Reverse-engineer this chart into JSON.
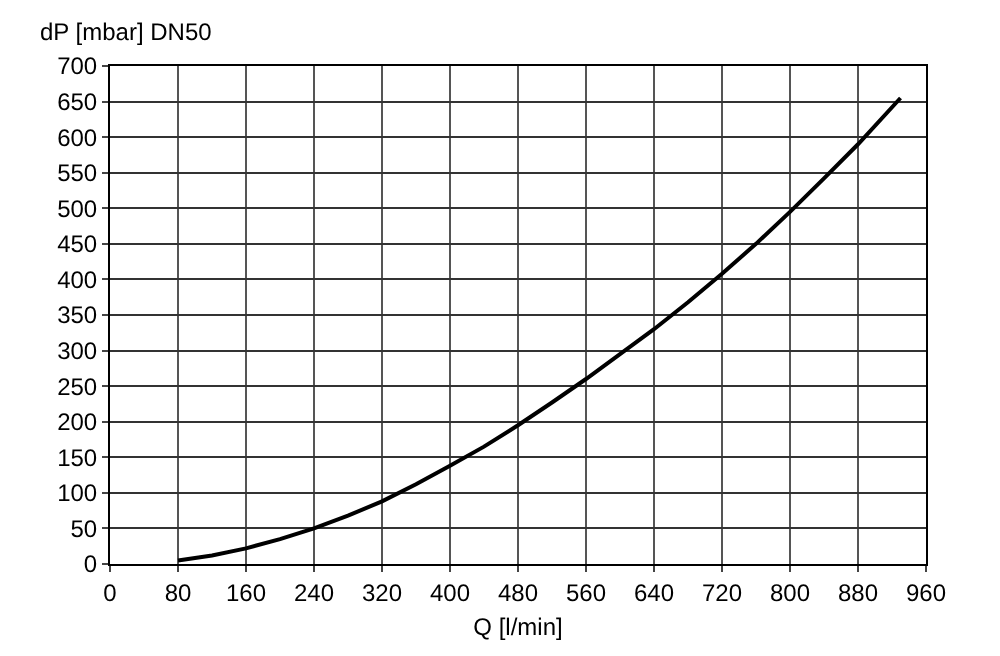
{
  "chart_data": {
    "type": "line",
    "ylabel": "dP [mbar] DN50",
    "xlabel": "Q [l/min]",
    "x": [
      80,
      120,
      160,
      200,
      240,
      280,
      320,
      360,
      400,
      440,
      480,
      520,
      560,
      600,
      640,
      680,
      720,
      760,
      800,
      840,
      880,
      930
    ],
    "series": [
      {
        "color": "#000000",
        "values": [
          5,
          12,
          22,
          35,
          50,
          68,
          88,
          112,
          138,
          165,
          195,
          227,
          260,
          295,
          330,
          368,
          408,
          450,
          495,
          542,
          590,
          655
        ]
      }
    ],
    "xlim": [
      0,
      960
    ],
    "xticks": [
      0,
      80,
      160,
      240,
      320,
      400,
      480,
      560,
      640,
      720,
      800,
      880,
      960
    ],
    "ylim": [
      0,
      700
    ],
    "yticks": [
      0,
      50,
      100,
      150,
      200,
      250,
      300,
      350,
      400,
      450,
      500,
      550,
      600,
      650,
      700
    ],
    "grid": true,
    "marker": "none",
    "line_style": "solid"
  }
}
